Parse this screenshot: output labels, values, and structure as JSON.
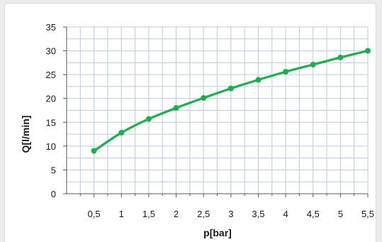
{
  "chart_data": {
    "type": "line",
    "xlabel": "p[bar]",
    "ylabel": "Q[l/min]",
    "x_ticks": [
      "0,5",
      "1",
      "1,5",
      "2",
      "2,5",
      "3",
      "3,5",
      "4",
      "4,5",
      "5",
      "5,5"
    ],
    "y_ticks": [
      "0",
      "5",
      "10",
      "15",
      "20",
      "25",
      "30",
      "35"
    ],
    "xlim": [
      0,
      5.5
    ],
    "ylim": [
      0,
      35
    ],
    "grid": true,
    "series": [
      {
        "color": "#18b14b",
        "x": [
          0.5,
          1,
          1.5,
          2,
          2.5,
          3,
          3.5,
          4,
          4.5,
          5,
          5.5
        ],
        "y": [
          9.0,
          12.8,
          15.7,
          18.0,
          20.1,
          22.1,
          23.9,
          25.6,
          27.1,
          28.6,
          30.0
        ]
      }
    ],
    "colors": {
      "grid": "#b8cce4",
      "axis": "#595959"
    }
  }
}
